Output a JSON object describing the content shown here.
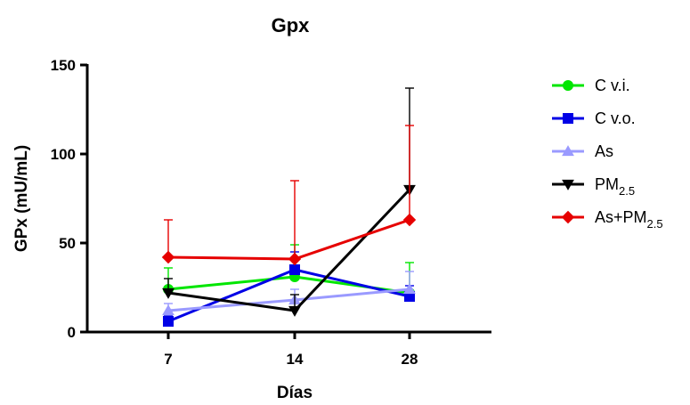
{
  "chart_data": {
    "type": "line",
    "title": "Gpx",
    "xlabel": "Días",
    "ylabel": "GPx (mU/mL)",
    "categories": [
      "7",
      "14",
      "28"
    ],
    "ylim": [
      0,
      150
    ],
    "yticks": [
      "0",
      "50",
      "100",
      "150"
    ],
    "legend_position": "right",
    "series": [
      {
        "name": "C v.i.",
        "label_main": "C v.i.",
        "label_sub": "",
        "color": "#00e600",
        "marker": "circle",
        "values": [
          24,
          31,
          22
        ],
        "errors": [
          12,
          18,
          17
        ]
      },
      {
        "name": "C v.o.",
        "label_main": "C v.o.",
        "label_sub": "",
        "color": "#0000e6",
        "marker": "square",
        "values": [
          6,
          35,
          20
        ],
        "errors": [
          3,
          10,
          6
        ]
      },
      {
        "name": "As",
        "label_main": "As",
        "label_sub": "",
        "color": "#9a9aff",
        "marker": "triangle-up",
        "values": [
          12,
          18,
          24
        ],
        "errors": [
          4,
          6,
          10
        ]
      },
      {
        "name": "PM2.5",
        "label_main": "PM",
        "label_sub": "2.5",
        "color": "#000000",
        "marker": "triangle-down",
        "values": [
          22,
          12,
          80
        ],
        "errors": [
          8,
          9,
          57
        ]
      },
      {
        "name": "As+PM2.5",
        "label_main": "As+PM",
        "label_sub": "2.5",
        "color": "#e60000",
        "marker": "diamond",
        "values": [
          42,
          41,
          63
        ],
        "errors": [
          21,
          44,
          53
        ]
      }
    ]
  }
}
